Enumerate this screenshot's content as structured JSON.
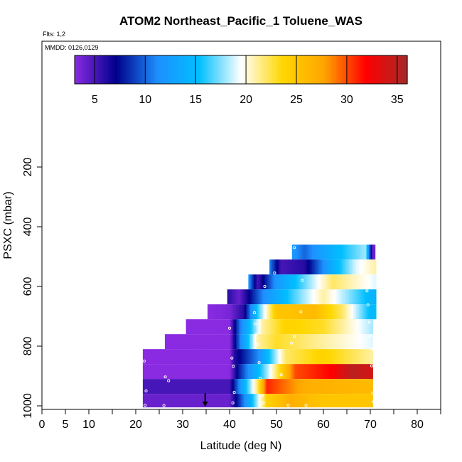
{
  "chart_data": {
    "type": "heatmap",
    "title": "ATOM2 Northeast_Pacific_1 Toluene_WAS",
    "flights_text": "Flts: 1,2",
    "dates_text": "MMDD: 0126,0129",
    "xlabel": "Latitude (deg N)",
    "ylabel": "PSXC (mbar)",
    "xlim": [
      0,
      85
    ],
    "ylim": [
      1000,
      0
    ],
    "x_ticks": [
      0,
      5,
      10,
      20,
      30,
      40,
      50,
      60,
      70,
      80
    ],
    "x_minor_ticks": [
      15,
      25,
      35,
      45,
      55,
      65,
      75,
      85
    ],
    "y_ticks": [
      200,
      400,
      600,
      800,
      1000
    ],
    "colorbar": {
      "range": [
        3,
        36
      ],
      "ticks": [
        5,
        10,
        15,
        20,
        25,
        30,
        35
      ],
      "colors": [
        "#8a2be2",
        "#00008b",
        "#1e90ff",
        "#00bfff",
        "#ffffff",
        "#ffd700",
        "#ffa500",
        "#ff0000",
        "#a52a2a"
      ]
    },
    "rows": [
      {
        "pressure": [
          460,
          510
        ],
        "lat": [
          53.3,
          71.0
        ],
        "stops": [
          [
            53.3,
            12
          ],
          [
            56,
            10
          ],
          [
            60,
            13
          ],
          [
            65,
            16
          ],
          [
            69,
            18
          ],
          [
            70.5,
            4
          ]
        ]
      },
      {
        "pressure": [
          510,
          560
        ],
        "lat": [
          48.5,
          71.2
        ],
        "stops": [
          [
            48.5,
            11
          ],
          [
            51,
            5
          ],
          [
            56,
            6
          ],
          [
            62,
            14
          ],
          [
            67,
            19
          ],
          [
            71.2,
            21
          ]
        ]
      },
      {
        "pressure": [
          560,
          610
        ],
        "lat": [
          44.0,
          71.2
        ],
        "stops": [
          [
            44,
            12
          ],
          [
            46,
            5
          ],
          [
            50,
            12
          ],
          [
            56,
            17
          ],
          [
            62,
            22
          ],
          [
            71.2,
            19
          ]
        ]
      },
      {
        "pressure": [
          610,
          660
        ],
        "lat": [
          39.5,
          71.2
        ],
        "stops": [
          [
            39.5,
            6
          ],
          [
            42,
            4
          ],
          [
            47,
            11
          ],
          [
            53,
            16
          ],
          [
            60,
            21
          ],
          [
            71.2,
            14
          ]
        ]
      },
      {
        "pressure": [
          660,
          710
        ],
        "lat": [
          35.3,
          71.2
        ],
        "stops": [
          [
            35.3,
            3
          ],
          [
            40,
            3.5
          ],
          [
            43,
            6
          ],
          [
            46,
            16
          ],
          [
            50,
            25
          ],
          [
            58,
            26
          ],
          [
            64,
            22
          ],
          [
            70,
            15
          ]
        ]
      },
      {
        "pressure": [
          710,
          760
        ],
        "lat": [
          30.7,
          70.5
        ],
        "stops": [
          [
            30.7,
            3
          ],
          [
            40,
            3
          ],
          [
            42,
            10
          ],
          [
            47,
            21
          ],
          [
            52,
            24
          ],
          [
            60,
            23
          ],
          [
            70.5,
            18
          ]
        ]
      },
      {
        "pressure": [
          760,
          810
        ],
        "lat": [
          26.2,
          70.5
        ],
        "stops": [
          [
            26.2,
            3
          ],
          [
            40,
            3
          ],
          [
            42,
            10
          ],
          [
            46,
            21
          ],
          [
            50,
            23
          ],
          [
            60,
            21
          ],
          [
            70.5,
            19
          ]
        ]
      },
      {
        "pressure": [
          810,
          860
        ],
        "lat": [
          21.5,
          70.5
        ],
        "stops": [
          [
            21.5,
            3
          ],
          [
            40,
            3
          ],
          [
            41,
            6
          ],
          [
            46,
            11
          ],
          [
            52,
            22
          ],
          [
            60,
            24
          ],
          [
            70.5,
            21
          ]
        ]
      },
      {
        "pressure": [
          860,
          910
        ],
        "lat": [
          21.5,
          70.5
        ],
        "stops": [
          [
            21.5,
            3
          ],
          [
            40,
            3
          ],
          [
            42,
            8
          ],
          [
            48,
            18
          ],
          [
            54,
            30
          ],
          [
            62,
            32
          ],
          [
            66,
            35
          ],
          [
            70,
            34
          ]
        ]
      },
      {
        "pressure": [
          910,
          960
        ],
        "lat": [
          21.5,
          70.5
        ],
        "stops": [
          [
            21.5,
            5
          ],
          [
            40,
            5
          ],
          [
            43,
            14
          ],
          [
            46,
            22
          ],
          [
            48,
            31
          ],
          [
            56,
            27
          ],
          [
            70.5,
            26
          ]
        ]
      },
      {
        "pressure": [
          960,
          1005
        ],
        "lat": [
          21.5,
          70.5
        ],
        "stops": [
          [
            21.5,
            4
          ],
          [
            40,
            4
          ],
          [
            44,
            13
          ],
          [
            48,
            24
          ],
          [
            53,
            27
          ],
          [
            60,
            25
          ],
          [
            70.5,
            25
          ]
        ]
      }
    ],
    "sample_points": [
      [
        21.8,
        850
      ],
      [
        22.2,
        950
      ],
      [
        22.0,
        998
      ],
      [
        26.3,
        903
      ],
      [
        27.0,
        916
      ],
      [
        26.0,
        999
      ],
      [
        40.5,
        840
      ],
      [
        40.8,
        868
      ],
      [
        41.0,
        955
      ],
      [
        40.7,
        990
      ],
      [
        40.0,
        740
      ],
      [
        45.3,
        688
      ],
      [
        45.5,
        725
      ],
      [
        45.7,
        760
      ],
      [
        46.0,
        795
      ],
      [
        46.3,
        855
      ],
      [
        46.5,
        908
      ],
      [
        47.0,
        965
      ],
      [
        47.2,
        990
      ],
      [
        49.6,
        555
      ],
      [
        47.5,
        600
      ],
      [
        53.8,
        470
      ],
      [
        55.5,
        580
      ],
      [
        55.2,
        685
      ],
      [
        53.8,
        768
      ],
      [
        53.2,
        790
      ],
      [
        51.0,
        896
      ],
      [
        52.5,
        998
      ],
      [
        56.3,
        999
      ],
      [
        69.3,
        615
      ],
      [
        69.5,
        662
      ],
      [
        69.8,
        720
      ],
      [
        70.0,
        765
      ],
      [
        70.3,
        808
      ],
      [
        70.3,
        866
      ],
      [
        70.5,
        957
      ],
      [
        70.7,
        986
      ]
    ],
    "profile_marker": {
      "lat": 34.8,
      "pressure": [
        958,
        1000
      ]
    }
  }
}
